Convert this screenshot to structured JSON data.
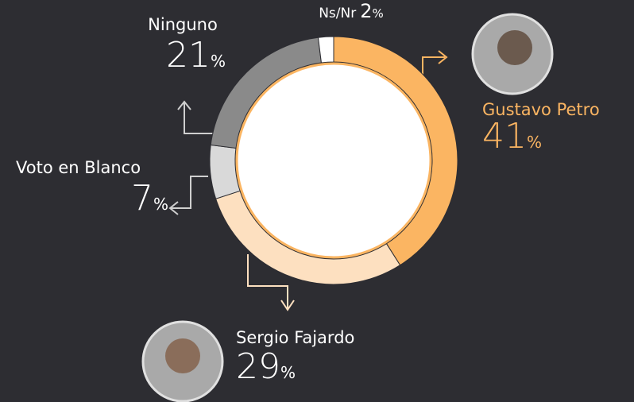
{
  "chart_data": {
    "type": "donut",
    "categories": [
      "Gustavo Petro",
      "Sergio Fajardo",
      "Voto en Blanco",
      "Ninguno",
      "Ns/Nr"
    ],
    "values": [
      41,
      29,
      7,
      21,
      2
    ],
    "colors": [
      "#fbb562",
      "#fde0c0",
      "#d9d9d9",
      "#8a8a8a",
      "#ffffff"
    ],
    "value_suffix": "%"
  }
}
